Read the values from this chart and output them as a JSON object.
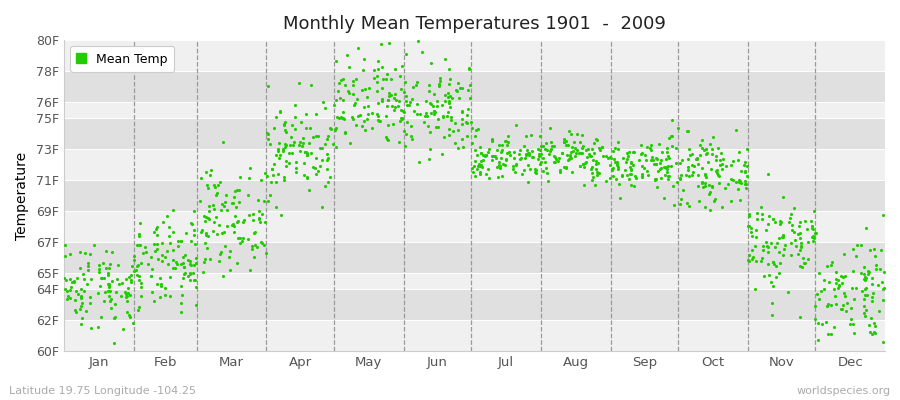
{
  "title": "Monthly Mean Temperatures 1901  -  2009",
  "ylabel": "Temperature",
  "xlabel_labels": [
    "Jan",
    "Feb",
    "Mar",
    "Apr",
    "May",
    "Jun",
    "Jul",
    "Aug",
    "Sep",
    "Oct",
    "Nov",
    "Dec"
  ],
  "bottom_left": "Latitude 19.75 Longitude -104.25",
  "bottom_right": "worldspecies.org",
  "dot_color": "#22cc00",
  "background_color": "#ffffff",
  "plot_bg_light": "#f0f0f0",
  "plot_bg_dark": "#e0e0e0",
  "ylim": [
    60,
    80
  ],
  "ytick_labels": [
    "60F",
    "62F",
    "64F",
    "65F",
    "67F",
    "69F",
    "71F",
    "73F",
    "75F",
    "76F",
    "78F",
    "80F"
  ],
  "ytick_values": [
    60,
    62,
    64,
    65,
    67,
    69,
    71,
    73,
    75,
    76,
    78,
    80
  ],
  "monthly_means": [
    64.2,
    65.5,
    68.5,
    73.0,
    75.8,
    75.5,
    72.5,
    72.5,
    72.0,
    71.5,
    67.0,
    64.0
  ],
  "monthly_stds": [
    1.4,
    1.5,
    1.6,
    1.6,
    1.6,
    1.5,
    0.8,
    0.8,
    0.9,
    1.0,
    1.6,
    1.8
  ],
  "n_years": 109,
  "dot_size": 5,
  "legend_label": "Mean Temp",
  "figsize": [
    9.0,
    4.0
  ],
  "dpi": 100,
  "month_days": [
    31,
    28,
    31,
    30,
    31,
    30,
    31,
    31,
    30,
    31,
    30,
    31
  ]
}
